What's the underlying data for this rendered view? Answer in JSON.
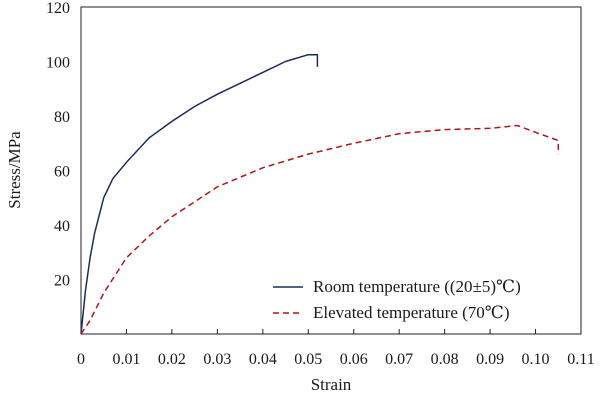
{
  "chart_data": {
    "type": "line",
    "title": "",
    "xlabel": "Strain",
    "ylabel": "Stress/MPa",
    "xlim": [
      0,
      0.11
    ],
    "ylim": [
      0,
      120
    ],
    "x_ticks": [
      "0",
      "0.01",
      "0.02",
      "0.03",
      "0.04",
      "0.05",
      "0.06",
      "0.07",
      "0.08",
      "0.09",
      "0.10",
      "0.11"
    ],
    "y_ticks": [
      "20",
      "40",
      "60",
      "80",
      "100",
      "120"
    ],
    "grid": false,
    "legend_placement": "bottom-right",
    "series": [
      {
        "name": "Room temperature ((20±5)℃)",
        "color": "#1f2a5c",
        "style": "solid",
        "x": [
          0,
          0.001,
          0.002,
          0.003,
          0.005,
          0.007,
          0.01,
          0.015,
          0.02,
          0.025,
          0.03,
          0.035,
          0.04,
          0.045,
          0.05,
          0.052,
          0.052
        ],
        "y": [
          0,
          16,
          28,
          37,
          50,
          57,
          63,
          72,
          78,
          83.5,
          88,
          92,
          96,
          100,
          102.5,
          102.5,
          98
        ]
      },
      {
        "name": "Elevated temperature (70℃)",
        "color": "#b0141c",
        "style": "dashed",
        "x": [
          0,
          0.002,
          0.005,
          0.01,
          0.015,
          0.02,
          0.03,
          0.04,
          0.05,
          0.06,
          0.07,
          0.08,
          0.09,
          0.096,
          0.1,
          0.105,
          0.105
        ],
        "y": [
          0,
          5,
          15,
          28,
          36,
          43,
          54,
          61,
          66,
          70,
          73.5,
          75,
          75.5,
          76.5,
          74,
          71,
          66
        ]
      }
    ]
  }
}
